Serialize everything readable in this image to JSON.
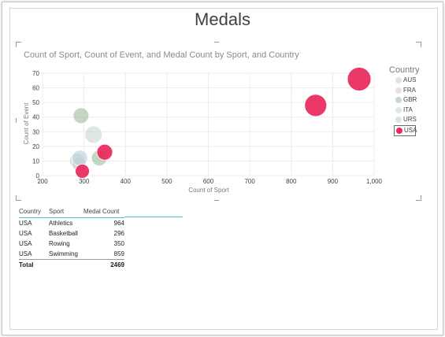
{
  "page": {
    "title": "Medals"
  },
  "chart": {
    "subtitle": "Count of Sport, Count of Event, and Medal Count by Sport, and Country",
    "legend_title": "Country"
  },
  "chart_data": {
    "type": "scatter",
    "title": "Count of Sport, Count of Event, and Medal Count by Sport, and Country",
    "xlabel": "Count of Sport",
    "ylabel": "Count of Event",
    "xlim": [
      200,
      1000
    ],
    "ylim": [
      0,
      70
    ],
    "x_ticks": [
      "200",
      "300",
      "400",
      "500",
      "600",
      "700",
      "800",
      "900",
      "1,000"
    ],
    "y_ticks": [
      "0",
      "10",
      "20",
      "30",
      "40",
      "50",
      "60",
      "70"
    ],
    "grid": true,
    "legend_position": "right",
    "legend": [
      "AUS",
      "FRA",
      "GBR",
      "ITA",
      "URS",
      "USA"
    ],
    "selected_series": "USA",
    "series": [
      {
        "name": "AUS",
        "color": "#c4cfd0",
        "points": [
          {
            "x": 284,
            "y": 10,
            "size": 10
          }
        ]
      },
      {
        "name": "FRA",
        "color": "#dcc4cf",
        "points": [
          {
            "x": 288,
            "y": 8,
            "size": 9
          }
        ]
      },
      {
        "name": "GBR",
        "color": "#9fbb9f",
        "points": [
          {
            "x": 293,
            "y": 41,
            "size": 10
          },
          {
            "x": 337,
            "y": 12,
            "size": 10
          }
        ]
      },
      {
        "name": "ITA",
        "color": "#c9d7cf",
        "points": [
          {
            "x": 323,
            "y": 28,
            "size": 11
          }
        ]
      },
      {
        "name": "URS",
        "color": "#b7d3d7",
        "points": [
          {
            "x": 290,
            "y": 12,
            "size": 10
          }
        ]
      },
      {
        "name": "USA",
        "color": "#e8275b",
        "points": [
          {
            "x": 964,
            "y": 66,
            "size": 15,
            "sport": "Athletics"
          },
          {
            "x": 859,
            "y": 48,
            "size": 14,
            "sport": "Swimming"
          },
          {
            "x": 350,
            "y": 16,
            "size": 10,
            "sport": "Rowing"
          },
          {
            "x": 296,
            "y": 3,
            "size": 9,
            "sport": "Basketball"
          }
        ]
      }
    ]
  },
  "table": {
    "headers": [
      "Country",
      "Sport",
      "Medal Count"
    ],
    "rows": [
      [
        "USA",
        "Athletics",
        "964"
      ],
      [
        "USA",
        "Basketball",
        "296"
      ],
      [
        "USA",
        "Rowing",
        "350"
      ],
      [
        "USA",
        "Swimming",
        "859"
      ]
    ],
    "total_label": "Total",
    "total_value": "2469"
  }
}
